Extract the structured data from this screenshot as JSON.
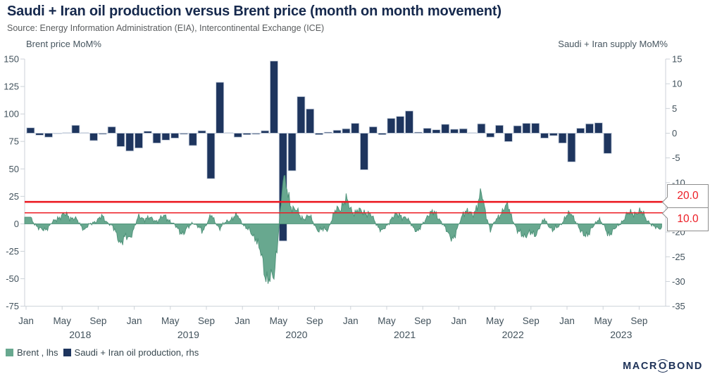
{
  "header": {
    "title": "Saudi + Iran oil production versus Brent price (month on month movement)",
    "source": "Source: Energy Information Administration (EIA), Intercontinental Exchange (ICE)"
  },
  "legend": [
    {
      "label": "Brent , lhs",
      "color": "#68a88f"
    },
    {
      "label": "Saudi + Iran oil production, rhs",
      "color": "#1e355e"
    }
  ],
  "logo": {
    "left": "MACR",
    "o": "O",
    "right": "BOND"
  },
  "chart_data": {
    "type": "combo",
    "left_axis": {
      "title": "Brent price MoM%",
      "min": -75,
      "max": 150,
      "tick_step": 25,
      "ticks": [
        150,
        125,
        100,
        75,
        50,
        25,
        0,
        -25,
        -50,
        -75
      ]
    },
    "right_axis": {
      "title": "Saudi + Iran supply MoM%",
      "min": -35,
      "max": 15,
      "tick_step": 5,
      "ticks": [
        15,
        10,
        5,
        0,
        -5,
        -10,
        -15,
        -20,
        -25,
        -30,
        -35
      ]
    },
    "x_axis": {
      "start": "2018-01",
      "end": "2023-11",
      "years": [
        2018,
        2019,
        2020,
        2021,
        2022,
        2023
      ],
      "month_ticks": [
        "Jan",
        "May",
        "Sep"
      ]
    },
    "ref_lines": [
      {
        "value": 20,
        "label": "20.0",
        "color": "#ec1c24",
        "width": 2.6
      },
      {
        "value": 10,
        "label": "10.0",
        "color": "#ec1c24",
        "width": 1.5
      }
    ],
    "series": [
      {
        "name": "Brent , lhs",
        "type": "area",
        "axis": "left",
        "color": "#68a88f",
        "edge_color": "#4d9178",
        "start": "2018-01",
        "freq": "monthly",
        "values": [
          6,
          -6,
          -3,
          6,
          8,
          4,
          -5,
          2,
          6,
          -2,
          -16,
          -12,
          6,
          5,
          3,
          7,
          -2,
          -9,
          2,
          -7,
          7,
          -4,
          4,
          7,
          -5,
          -12,
          -45,
          -52,
          40,
          16,
          6,
          6,
          -7,
          -4,
          14,
          20,
          10,
          12,
          5,
          -8,
          5,
          9,
          2,
          -8,
          8,
          10,
          -5,
          -14,
          12,
          8,
          26,
          -6,
          9,
          16,
          -8,
          -10,
          -9,
          4,
          -7,
          2,
          11,
          -8,
          -9,
          6,
          -9,
          -4,
          7,
          11,
          9,
          -3,
          -3
        ]
      },
      {
        "name": "Saudi + Iran oil production, rhs",
        "type": "bar",
        "axis": "right",
        "color": "#1e355e",
        "edge_color": "#c6cfdc",
        "start": "2018-01",
        "freq": "monthly",
        "values": [
          1.1,
          -0.4,
          -0.8,
          -0.1,
          0.1,
          1.6,
          0.1,
          -1.5,
          -0.2,
          1.3,
          -2.7,
          -3.6,
          -3.0,
          0.4,
          -2.0,
          -1.4,
          -1.0,
          -0.2,
          -2.5,
          0.5,
          -9.2,
          10.3,
          0.1,
          -0.8,
          -0.3,
          -0.2,
          0.5,
          14.6,
          -21.8,
          -7.6,
          7.4,
          4.9,
          -0.3,
          0.2,
          0.6,
          0.9,
          2.0,
          -7.4,
          1.3,
          -0.3,
          3.0,
          3.4,
          4.5,
          0.2,
          1.0,
          0.7,
          1.8,
          0.8,
          0.9,
          0.1,
          1.9,
          -0.8,
          1.6,
          -1.7,
          1.5,
          2.0,
          2.0,
          -1.0,
          -0.5,
          -2.0,
          -5.8,
          1.0,
          1.9,
          2.1,
          -4.1
        ]
      }
    ]
  }
}
